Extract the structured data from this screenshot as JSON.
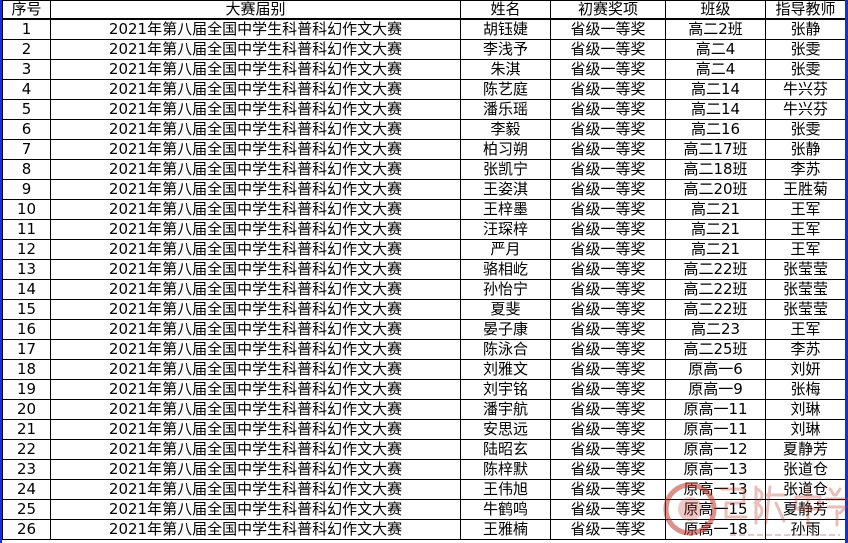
{
  "headers": [
    "序号",
    "大赛届别",
    "姓名",
    "初赛奖项",
    "班级",
    "指导教师"
  ],
  "rows": [
    [
      "1",
      "2021年第八届全国中学生科普科幻作文大赛",
      "胡钰婕",
      "省级一等奖",
      "高二2班",
      "张静"
    ],
    [
      "2",
      "2021年第八届全国中学生科普科幻作文大赛",
      "李浅予",
      "省级一等奖",
      "高二4",
      "张雯"
    ],
    [
      "3",
      "2021年第八届全国中学生科普科幻作文大赛",
      "朱淇",
      "省级一等奖",
      "高二4",
      "张雯"
    ],
    [
      "4",
      "2021年第八届全国中学生科普科幻作文大赛",
      "陈艺庭",
      "省级一等奖",
      "高二14",
      "牛兴芬"
    ],
    [
      "5",
      "2021年第八届全国中学生科普科幻作文大赛",
      "潘乐瑶",
      "省级一等奖",
      "高二14",
      "牛兴芬"
    ],
    [
      "6",
      "2021年第八届全国中学生科普科幻作文大赛",
      "李毅",
      "省级一等奖",
      "高二16",
      "张雯"
    ],
    [
      "7",
      "2021年第八届全国中学生科普科幻作文大赛",
      "柏习朔",
      "省级一等奖",
      "高二17班",
      "张静"
    ],
    [
      "8",
      "2021年第八届全国中学生科普科幻作文大赛",
      "张凯宁",
      "省级一等奖",
      "高二18班",
      "李苏"
    ],
    [
      "9",
      "2021年第八届全国中学生科普科幻作文大赛",
      "王姿淇",
      "省级一等奖",
      "高二20班",
      "王胜菊"
    ],
    [
      "10",
      "2021年第八届全国中学生科普科幻作文大赛",
      "王梓墨",
      "省级一等奖",
      "高二21",
      "王军"
    ],
    [
      "11",
      "2021年第八届全国中学生科普科幻作文大赛",
      "汪琛梓",
      "省级一等奖",
      "高二21",
      "王军"
    ],
    [
      "12",
      "2021年第八届全国中学生科普科幻作文大赛",
      "严月",
      "省级一等奖",
      "高二21",
      "王军"
    ],
    [
      "13",
      "2021年第八届全国中学生科普科幻作文大赛",
      "骆相屹",
      "省级一等奖",
      "高二22班",
      "张莹莹"
    ],
    [
      "14",
      "2021年第八届全国中学生科普科幻作文大赛",
      "孙怡宁",
      "省级一等奖",
      "高二22班",
      "张莹莹"
    ],
    [
      "15",
      "2021年第八届全国中学生科普科幻作文大赛",
      "夏斐",
      "省级一等奖",
      "高二22班",
      "张莹莹"
    ],
    [
      "16",
      "2021年第八届全国中学生科普科幻作文大赛",
      "晏子康",
      "省级一等奖",
      "高二23",
      "王军"
    ],
    [
      "17",
      "2021年第八届全国中学生科普科幻作文大赛",
      "陈泳合",
      "省级一等奖",
      "高二25班",
      "李苏"
    ],
    [
      "18",
      "2021年第八届全国中学生科普科幻作文大赛",
      "刘雅文",
      "省级一等奖",
      "原高一6",
      "刘妍"
    ],
    [
      "19",
      "2021年第八届全国中学生科普科幻作文大赛",
      "刘宇铭",
      "省级一等奖",
      "原高一9",
      "张梅"
    ],
    [
      "20",
      "2021年第八届全国中学生科普科幻作文大赛",
      "潘宇航",
      "省级一等奖",
      "原高一11",
      "刘琳"
    ],
    [
      "21",
      "2021年第八届全国中学生科普科幻作文大赛",
      "安思远",
      "省级一等奖",
      "原高一11",
      "刘琳"
    ],
    [
      "22",
      "2021年第八届全国中学生科普科幻作文大赛",
      "陆昭玄",
      "省级一等奖",
      "原高一12",
      "夏静芳"
    ],
    [
      "23",
      "2021年第八届全国中学生科普科幻作文大赛",
      "陈梓默",
      "省级一等奖",
      "原高一13",
      "张道仓"
    ],
    [
      "24",
      "2021年第八届全国中学生科普科幻作文大赛",
      "王伟旭",
      "省级一等奖",
      "原高一13",
      "张道仓"
    ],
    [
      "25",
      "2021年第八届全国中学生科普科幻作文大赛",
      "牛鹤鸣",
      "省级一等奖",
      "原高一15",
      "夏静芳"
    ],
    [
      "26",
      "2021年第八届全国中学生科普科幻作文大赛",
      "王雅楠",
      "省级一等奖",
      "原高一18",
      "孙雨"
    ]
  ],
  "watermark": {
    "text": "马陵中学",
    "url": "www.sqmlzx.net",
    "color": "#c0392b"
  },
  "colors": {
    "window_edge": "#1a2fd0"
  }
}
